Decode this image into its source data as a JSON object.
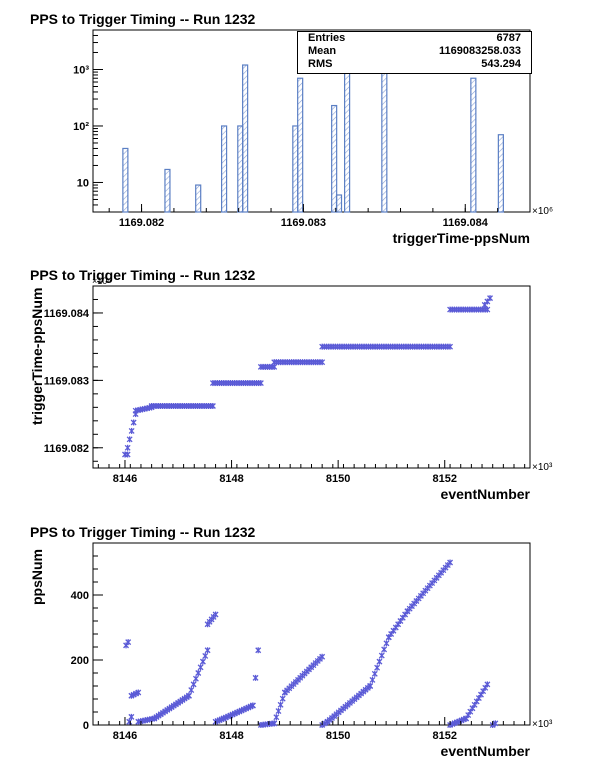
{
  "chart_data": [
    {
      "type": "bar",
      "title": "PPS to Trigger Timing -- Run 1232",
      "xlabel": "triggerTime-ppsNum",
      "ylabel": "",
      "x_multiplier": "×10⁶",
      "xlim": [
        1169.0817,
        1169.0844
      ],
      "ylim": [
        3,
        5000
      ],
      "y_scale": "log",
      "x_ticks": [
        "1169.082",
        "1169.083",
        "1169.084"
      ],
      "y_ticks": [
        "10",
        "10²",
        "10³"
      ],
      "bar_color": "#5b7fc4",
      "fill_style": "hatched",
      "bins": [
        {
          "x": 1169.0819,
          "y": 40
        },
        {
          "x": 1169.08216,
          "y": 17
        },
        {
          "x": 1169.08235,
          "y": 9
        },
        {
          "x": 1169.08251,
          "y": 100
        },
        {
          "x": 1169.08261,
          "y": 100
        },
        {
          "x": 1169.08264,
          "y": 1200
        },
        {
          "x": 1169.08295,
          "y": 100
        },
        {
          "x": 1169.08298,
          "y": 700
        },
        {
          "x": 1169.08319,
          "y": 230
        },
        {
          "x": 1169.08322,
          "y": 6
        },
        {
          "x": 1169.08327,
          "y": 900
        },
        {
          "x": 1169.0835,
          "y": 2200
        },
        {
          "x": 1169.08405,
          "y": 700
        },
        {
          "x": 1169.08422,
          "y": 70
        }
      ],
      "stats": [
        {
          "label": "Entries",
          "value": "6787"
        },
        {
          "label": "Mean",
          "value": "1169083258.033"
        },
        {
          "label": "RMS",
          "value": "543.294"
        }
      ]
    },
    {
      "type": "scatter",
      "title": "PPS to Trigger Timing -- Run 1232",
      "xlabel": "eventNumber",
      "ylabel": "triggerTime-ppsNum",
      "x_multiplier": "×10³",
      "y_multiplier": "×10⁶",
      "xlim": [
        8145.4,
        8153.6
      ],
      "ylim": [
        1169.0817,
        1169.0844
      ],
      "x_ticks": [
        "8146",
        "8148",
        "8150",
        "8152"
      ],
      "y_ticks": [
        "1169.082",
        "1169.083",
        "1169.084"
      ],
      "marker_color": "#5b5bd6",
      "segments": [
        {
          "x": [
            8146.0,
            8146.05
          ],
          "y": [
            1169.0819,
            1169.0819
          ]
        },
        {
          "x": [
            8146.05,
            8146.2
          ],
          "y": [
            1169.082,
            1169.0825
          ]
        },
        {
          "x": [
            8146.2,
            8146.5
          ],
          "y": [
            1169.08255,
            1169.0826
          ]
        },
        {
          "x": [
            8146.5,
            8147.65
          ],
          "y": [
            1169.08262,
            1169.08262
          ]
        },
        {
          "x": [
            8147.65,
            8148.55
          ],
          "y": [
            1169.08296,
            1169.08296
          ]
        },
        {
          "x": [
            8148.55,
            8148.8
          ],
          "y": [
            1169.0832,
            1169.0832
          ]
        },
        {
          "x": [
            8148.8,
            8149.7
          ],
          "y": [
            1169.08327,
            1169.08327
          ]
        },
        {
          "x": [
            8149.7,
            8152.1
          ],
          "y": [
            1169.0835,
            1169.0835
          ]
        },
        {
          "x": [
            8152.1,
            8152.8
          ],
          "y": [
            1169.08405,
            1169.08405
          ]
        },
        {
          "x": [
            8152.75,
            8152.85
          ],
          "y": [
            1169.08412,
            1169.08422
          ]
        }
      ]
    },
    {
      "type": "scatter",
      "title": "PPS to Trigger Timing -- Run 1232",
      "xlabel": "eventNumber",
      "ylabel": "ppsNum",
      "x_multiplier": "×10³",
      "xlim": [
        8145.4,
        8153.6
      ],
      "ylim": [
        0,
        560
      ],
      "x_ticks": [
        "8146",
        "8148",
        "8150",
        "8152"
      ],
      "y_ticks": [
        "0",
        "200",
        "400"
      ],
      "marker_color": "#5b5bd6",
      "segments": [
        {
          "x": [
            8146.02,
            8146.06
          ],
          "y": [
            245,
            255
          ]
        },
        {
          "x": [
            8146.08,
            8146.12
          ],
          "y": [
            10,
            25
          ]
        },
        {
          "x": [
            8146.12,
            8146.25
          ],
          "y": [
            90,
            100
          ]
        },
        {
          "x": [
            8146.25,
            8146.55
          ],
          "y": [
            10,
            20
          ]
        },
        {
          "x": [
            8146.55,
            8147.2
          ],
          "y": [
            20,
            90
          ]
        },
        {
          "x": [
            8147.2,
            8147.55
          ],
          "y": [
            90,
            230
          ]
        },
        {
          "x": [
            8147.55,
            8147.7
          ],
          "y": [
            310,
            340
          ]
        },
        {
          "x": [
            8147.7,
            8147.85
          ],
          "y": [
            10,
            20
          ]
        },
        {
          "x": [
            8147.85,
            8148.4
          ],
          "y": [
            20,
            60
          ]
        },
        {
          "x": [
            8148.4,
            8148.5
          ],
          "y": [
            60,
            230
          ]
        },
        {
          "x": [
            8148.55,
            8148.8
          ],
          "y": [
            0,
            5
          ]
        },
        {
          "x": [
            8148.8,
            8149.0
          ],
          "y": [
            5,
            100
          ]
        },
        {
          "x": [
            8149.0,
            8149.7
          ],
          "y": [
            100,
            210
          ]
        },
        {
          "x": [
            8149.7,
            8149.8
          ],
          "y": [
            0,
            10
          ]
        },
        {
          "x": [
            8149.8,
            8150.6
          ],
          "y": [
            10,
            120
          ]
        },
        {
          "x": [
            8150.6,
            8150.95
          ],
          "y": [
            120,
            270
          ]
        },
        {
          "x": [
            8150.95,
            8151.3
          ],
          "y": [
            270,
            350
          ]
        },
        {
          "x": [
            8151.3,
            8152.1
          ],
          "y": [
            350,
            500
          ]
        },
        {
          "x": [
            8152.1,
            8152.4
          ],
          "y": [
            0,
            20
          ]
        },
        {
          "x": [
            8152.4,
            8152.8
          ],
          "y": [
            20,
            125
          ]
        },
        {
          "x": [
            8152.9,
            8152.95
          ],
          "y": [
            0,
            5
          ]
        }
      ]
    }
  ]
}
